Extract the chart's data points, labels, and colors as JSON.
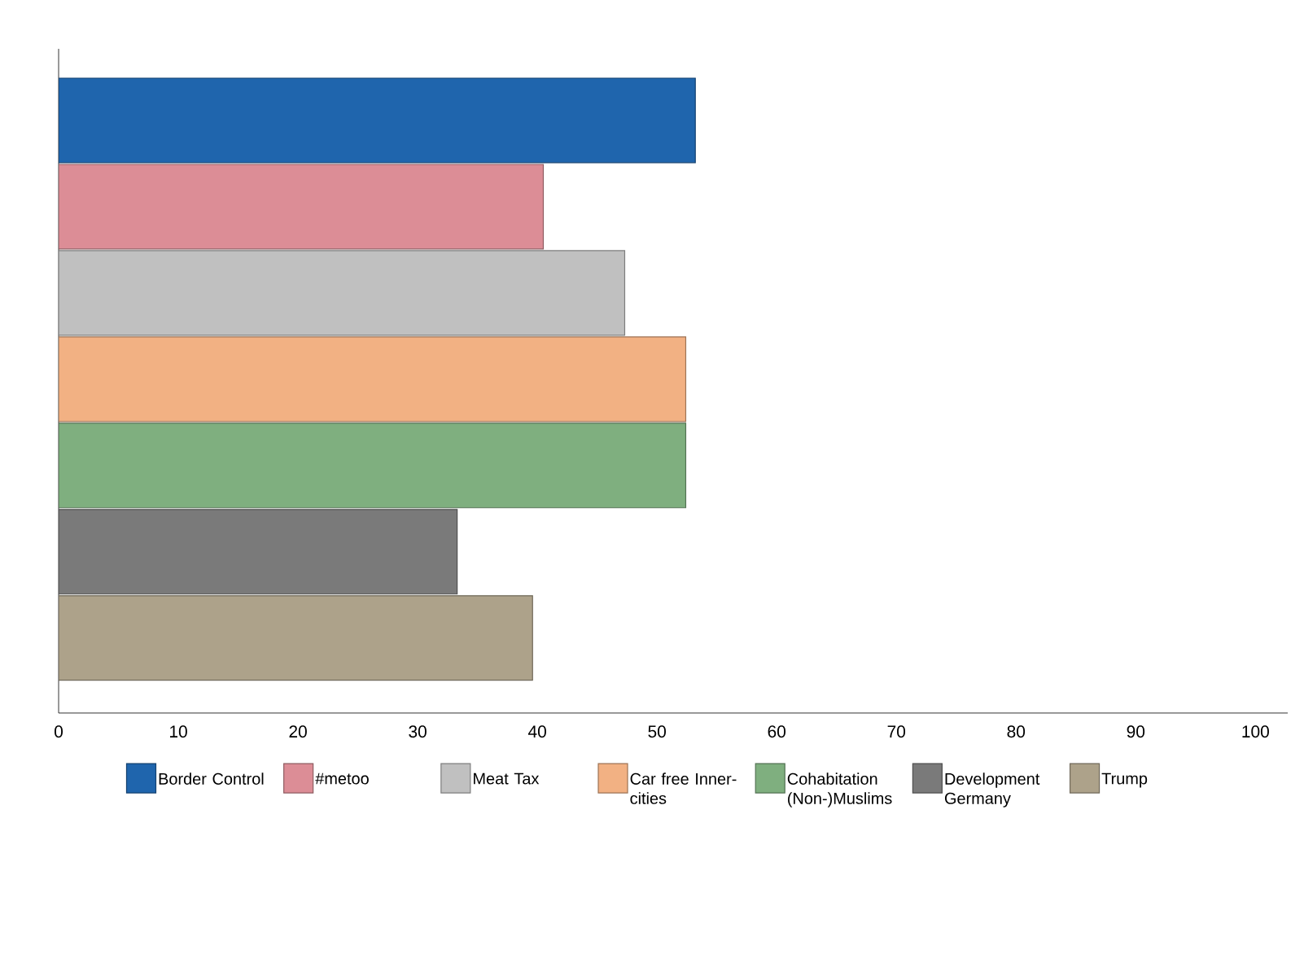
{
  "chart_data": {
    "type": "bar",
    "orientation": "horizontal",
    "categories": [
      null
    ],
    "series": [
      {
        "name": "Border Control",
        "color": "#1f65ad",
        "values": [
          53.2
        ]
      },
      {
        "name": "#metoo",
        "color": "#dc8d96",
        "values": [
          40.5
        ]
      },
      {
        "name": "Meat Tax",
        "color": "#c0c0c0",
        "values": [
          47.3
        ]
      },
      {
        "name": "Car free Inner-cities",
        "color": "#f2b183",
        "values": [
          52.4
        ]
      },
      {
        "name": "Cohabitation (Non-)Muslims",
        "color": "#7faf7f",
        "values": [
          52.4
        ]
      },
      {
        "name": "Development Germany",
        "color": "#7a7a7a",
        "values": [
          33.3
        ]
      },
      {
        "name": "Trump",
        "color": "#ada28a",
        "values": [
          39.6
        ]
      }
    ],
    "xlim": [
      0,
      102.7
    ],
    "xticks": [
      0,
      10,
      20,
      30,
      40,
      50,
      60,
      70,
      80,
      90,
      100
    ],
    "tick_labels": "x",
    "legend": "bottom"
  }
}
